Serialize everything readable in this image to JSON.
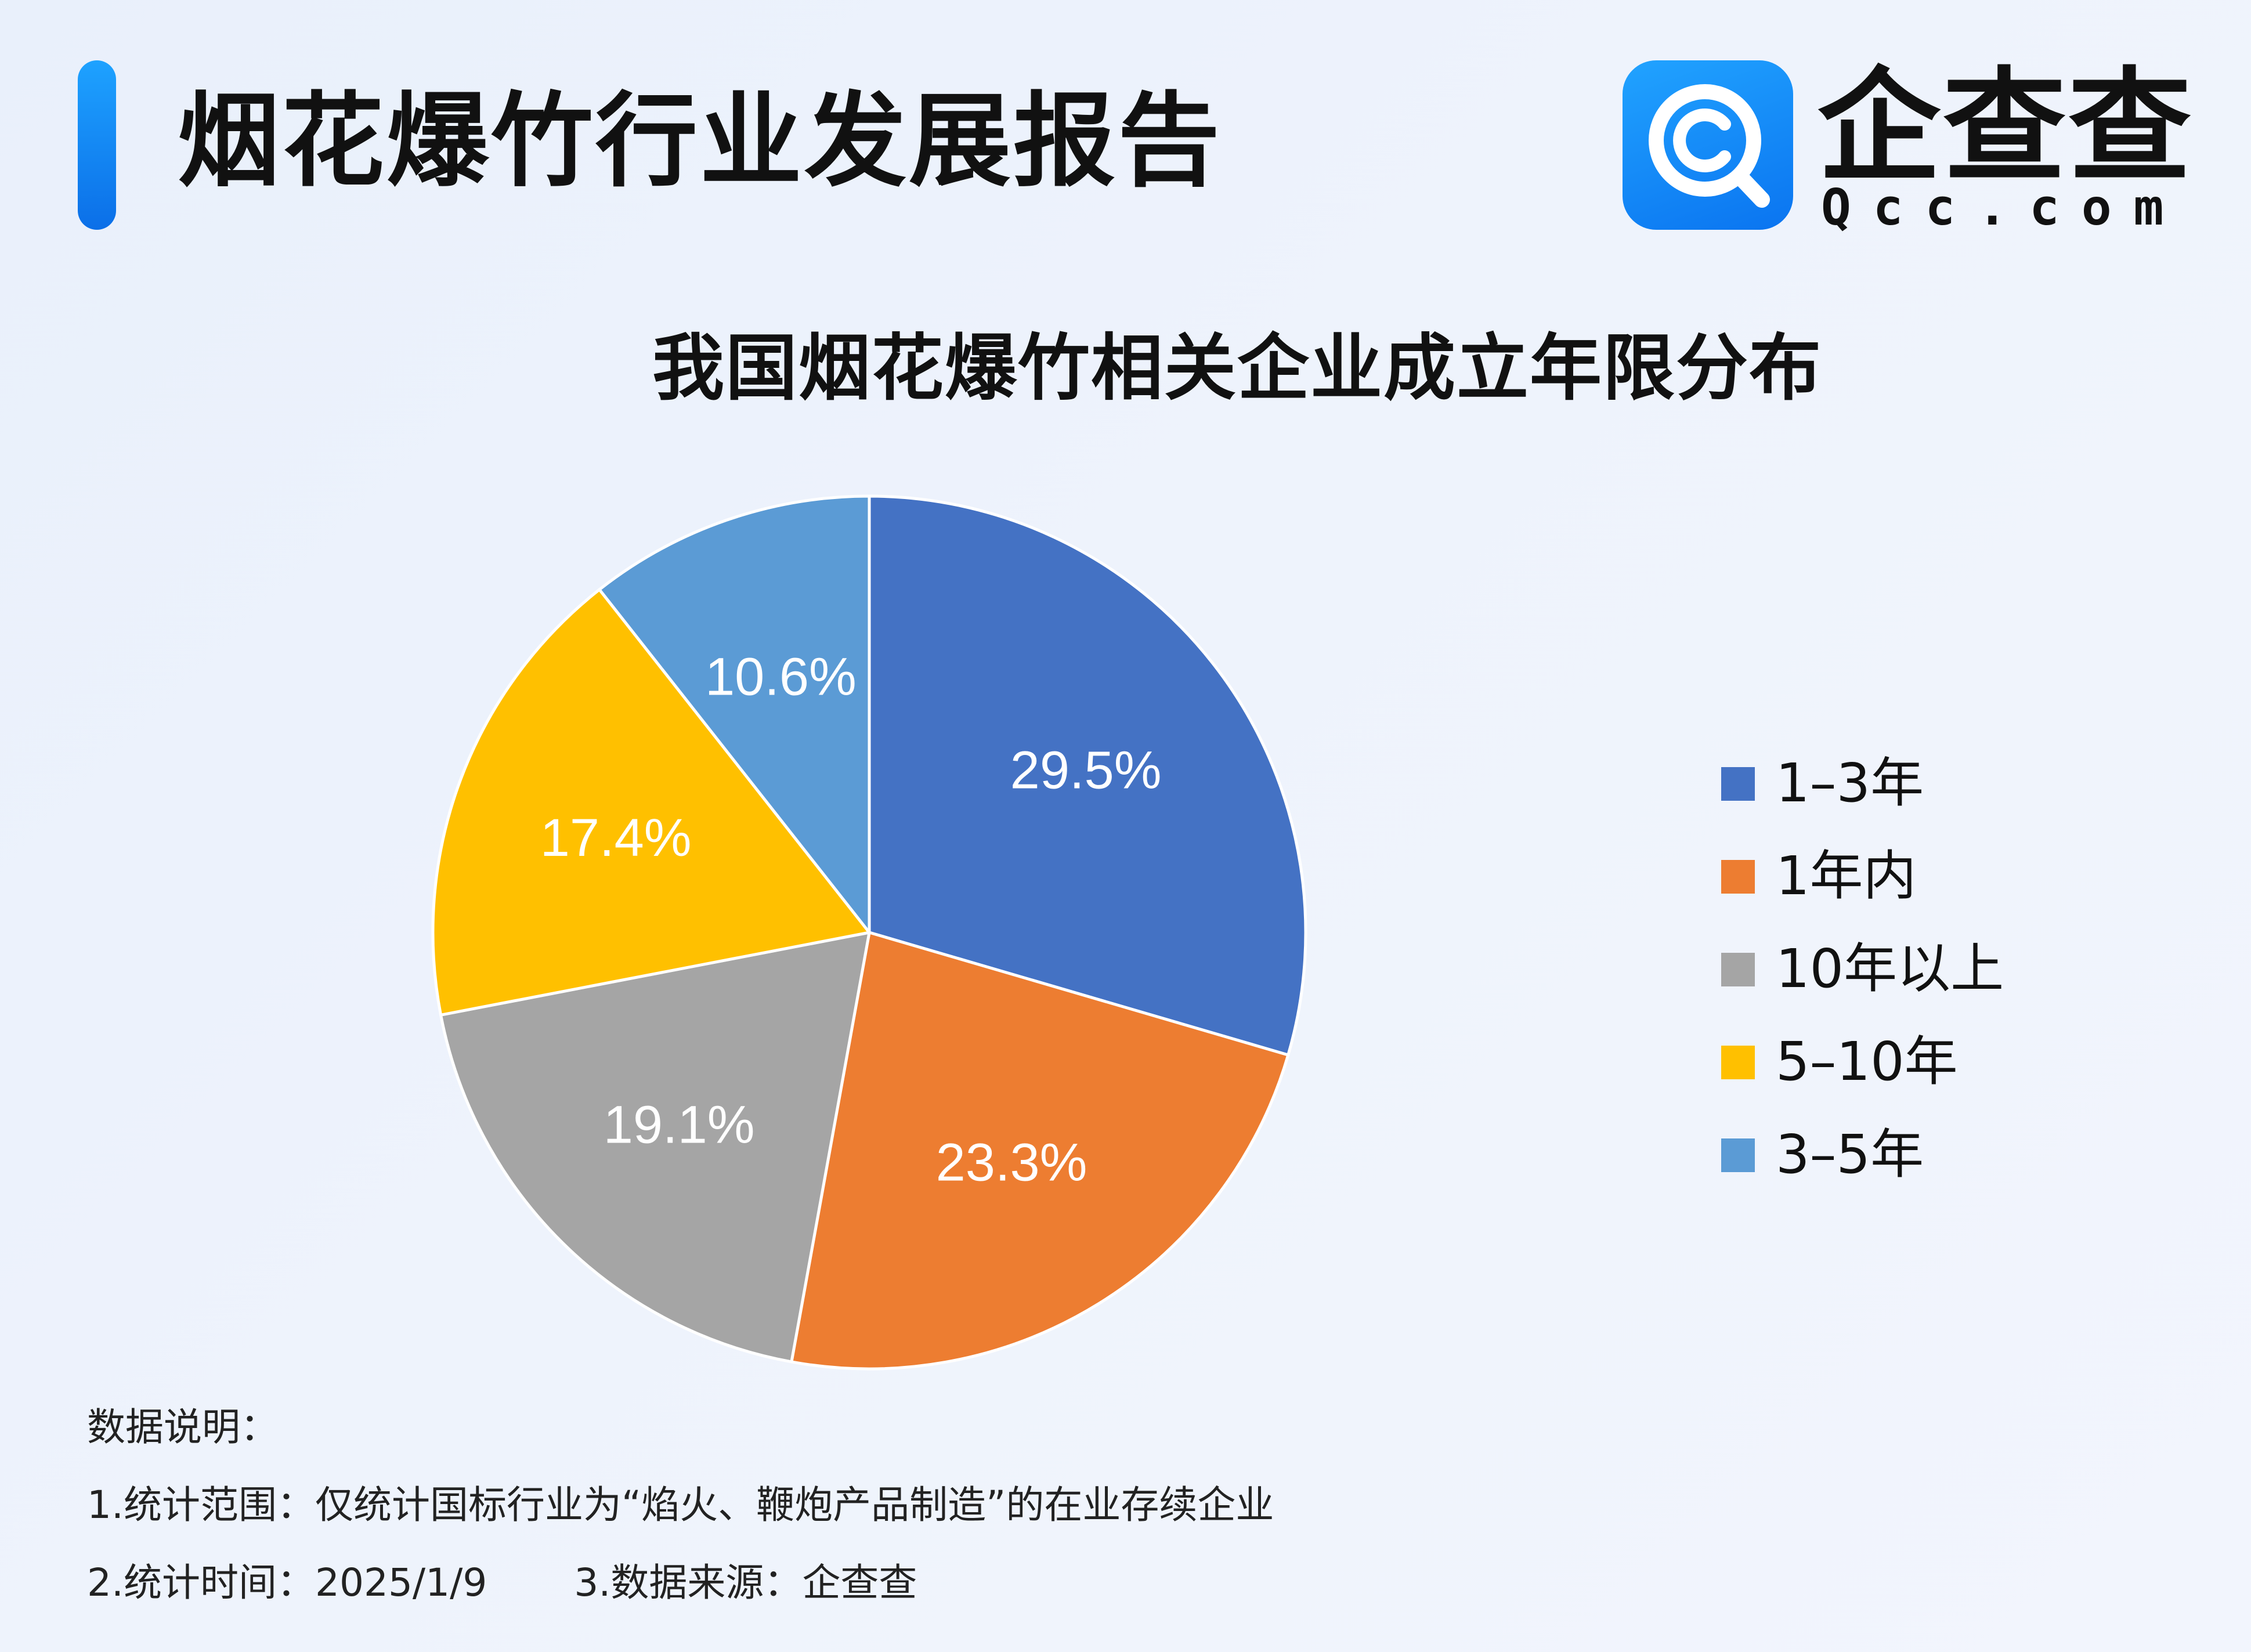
{
  "header": {
    "report_title": "烟花爆竹行业发展报告",
    "logo_name": "企查查",
    "logo_domain": "Qcc.com",
    "logo_icon": "qcc-magnifier-logo-icon",
    "accent_color": "#1a8cff"
  },
  "chart_data": {
    "type": "pie",
    "title": "我国烟花爆竹相关企业成立年限分布",
    "unit": "%",
    "legend_position": "right",
    "start_angle_deg": 0,
    "direction": "clockwise",
    "slices": [
      {
        "label": "1–3年",
        "value": 29.5,
        "display": "29.5%",
        "color": "#4472c4"
      },
      {
        "label": "1年内",
        "value": 23.3,
        "display": "23.3%",
        "color": "#ed7d31"
      },
      {
        "label": "10年以上",
        "value": 19.1,
        "display": "19.1%",
        "color": "#a5a5a5"
      },
      {
        "label": "5–10年",
        "value": 17.4,
        "display": "17.4%",
        "color": "#ffc000"
      },
      {
        "label": "3–5年",
        "value": 10.6,
        "display": "10.6%",
        "color": "#5b9bd5"
      }
    ]
  },
  "notes": {
    "heading": "数据说明：",
    "scope": "1.统计范围：仅统计国标行业为“焰火、鞭炮产品制造”的在业存续企业",
    "time": "2.统计时间：2025/1/9",
    "source": "3.数据来源：企查查"
  }
}
